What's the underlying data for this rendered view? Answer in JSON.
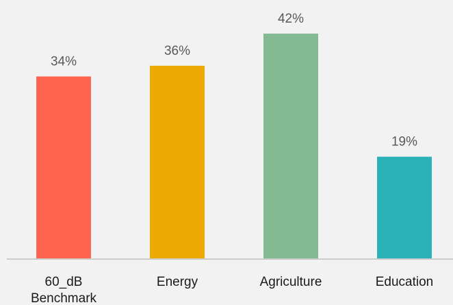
{
  "chart_data": {
    "type": "bar",
    "categories": [
      [
        "60_dB",
        "Benchmark"
      ],
      [
        "Energy"
      ],
      [
        "Agriculture"
      ],
      [
        "Education"
      ]
    ],
    "values": [
      34,
      36,
      42,
      19
    ],
    "value_labels": [
      "34%",
      "36%",
      "42%",
      "19%"
    ],
    "colors": [
      "#ff6550",
      "#edaa04",
      "#84ba92",
      "#2bb1b8"
    ],
    "title": "",
    "xlabel": "",
    "ylabel": "",
    "ylim": [
      0,
      45
    ],
    "unit": "%",
    "grid": false,
    "legend": "none"
  }
}
